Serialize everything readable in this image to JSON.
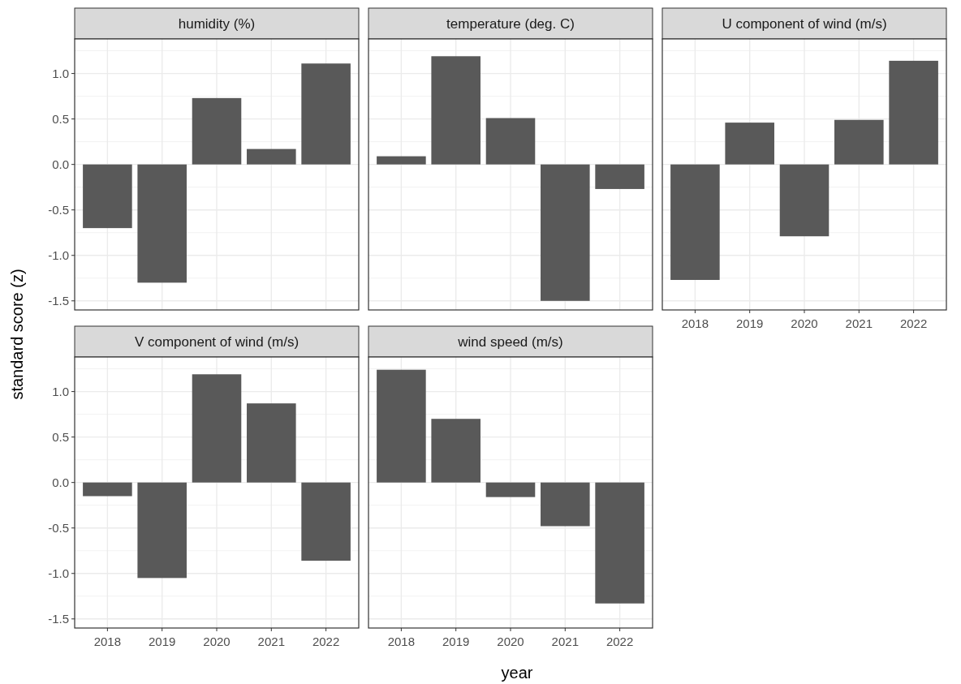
{
  "chart_data": [
    {
      "type": "bar",
      "title": "humidity (%)",
      "ylabel": "standard score (z)",
      "categories": [
        "2018",
        "2019",
        "2020",
        "2021",
        "2022"
      ],
      "values": [
        -0.7,
        -1.3,
        0.73,
        0.17,
        1.11
      ],
      "color": "#595959",
      "ylim": [
        -1.6,
        1.38
      ],
      "yticks": [
        {
          "value": -1.5,
          "label": "-1.5"
        },
        {
          "value": -1,
          "label": "-1.0"
        },
        {
          "value": -0.5,
          "label": "-0.5"
        },
        {
          "value": 0,
          "label": "0.0"
        },
        {
          "value": 0.5,
          "label": "0.5"
        },
        {
          "value": 1,
          "label": "1.0"
        }
      ],
      "grid": true,
      "tick_labels": "y"
    },
    {
      "type": "bar",
      "title": "temperature (deg. C)",
      "categories": [
        "2018",
        "2019",
        "2020",
        "2021",
        "2022"
      ],
      "values": [
        0.09,
        1.19,
        0.51,
        -1.5,
        -0.27
      ],
      "color": "#595959",
      "ylim": [
        -1.6,
        1.38
      ],
      "yticks": [
        {
          "value": -1.5,
          "label": null
        },
        {
          "value": -1,
          "label": null
        },
        {
          "value": -0.5,
          "label": null
        },
        {
          "value": 0,
          "label": null
        },
        {
          "value": 0.5,
          "label": null
        },
        {
          "value": 1,
          "label": null
        }
      ],
      "grid": true,
      "tick_labels": false
    },
    {
      "type": "bar",
      "title": "U component of wind (m/s)",
      "categories": [
        "2018",
        "2019",
        "2020",
        "2021",
        "2022"
      ],
      "values": [
        -1.27,
        0.46,
        -0.79,
        0.49,
        1.14
      ],
      "color": "#595959",
      "ylim": [
        -1.6,
        1.38
      ],
      "yticks": [
        {
          "value": -1.5,
          "label": null
        },
        {
          "value": -1,
          "label": null
        },
        {
          "value": -0.5,
          "label": null
        },
        {
          "value": 0,
          "label": null
        },
        {
          "value": 0.5,
          "label": null
        },
        {
          "value": 1,
          "label": null
        }
      ],
      "grid": true,
      "tick_labels": "x"
    },
    {
      "type": "bar",
      "title": "V component of wind (m/s)",
      "categories": [
        "2018",
        "2019",
        "2020",
        "2021",
        "2022"
      ],
      "values": [
        -0.15,
        -1.05,
        1.19,
        0.87,
        -0.86
      ],
      "color": "#595959",
      "ylim": [
        -1.6,
        1.38
      ],
      "yticks": [
        {
          "value": -1.5,
          "label": "-1.5"
        },
        {
          "value": -1,
          "label": "-1.0"
        },
        {
          "value": -0.5,
          "label": "-0.5"
        },
        {
          "value": 0,
          "label": "0.0"
        },
        {
          "value": 0.5,
          "label": "0.5"
        },
        {
          "value": 1,
          "label": "1.0"
        }
      ],
      "grid": true
    },
    {
      "type": "bar",
      "title": "wind speed (m/s)",
      "xlabel": "year",
      "categories": [
        "2018",
        "2019",
        "2020",
        "2021",
        "2022"
      ],
      "values": [
        1.24,
        0.7,
        -0.16,
        -0.48,
        -1.33
      ],
      "color": "#595959",
      "ylim": [
        -1.6,
        1.38
      ],
      "yticks": [
        {
          "value": -1.5,
          "label": null
        },
        {
          "value": -1,
          "label": null
        },
        {
          "value": -0.5,
          "label": null
        },
        {
          "value": 0,
          "label": null
        },
        {
          "value": 0.5,
          "label": null
        },
        {
          "value": 1,
          "label": null
        }
      ],
      "grid": true,
      "tick_labels": "x"
    }
  ]
}
